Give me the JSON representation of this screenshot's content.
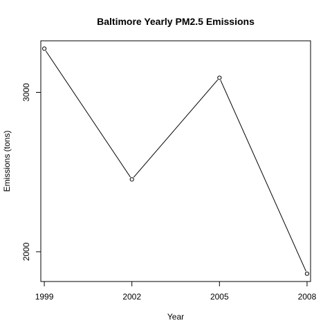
{
  "chart_data": {
    "type": "line",
    "title": "Baltimore Yearly PM2.5 Emissions",
    "xlabel": "Year",
    "ylabel": "Emissions (tons)",
    "x": [
      1999,
      2002,
      2005,
      2008
    ],
    "y": [
      3274.18,
      2453.916,
      3091.354,
      1862.282
    ],
    "xticks": [
      "1999",
      "2002",
      "2005",
      "2008"
    ],
    "yticks": [
      2000,
      3000
    ],
    "ytick_labels": [
      "2000",
      "3000"
    ],
    "xlim": [
      1998.88,
      2008.12
    ],
    "ylim": [
      1813.2,
      3323.3
    ],
    "grid": false,
    "marker": "open-circle",
    "color": "#000000"
  }
}
